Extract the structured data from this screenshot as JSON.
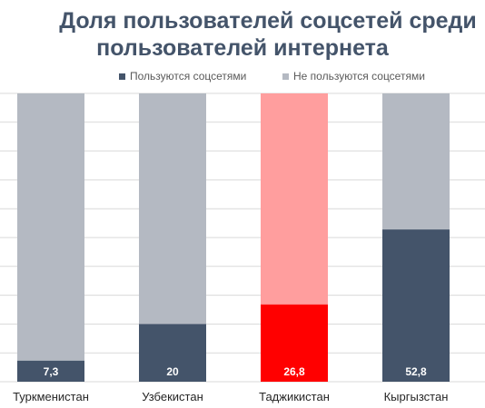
{
  "chart_data": {
    "type": "bar",
    "stacked": true,
    "percent": true,
    "title_line1": "Доля пользователей соцсетей среди",
    "title_line2": "пользователей интернета",
    "categories": [
      "Туркменистан",
      "Узбекистан",
      "Таджикистан",
      "Кыргызстан"
    ],
    "series": [
      {
        "name": "Пользуются соцсетями",
        "values": [
          7.3,
          20,
          26.8,
          52.8
        ],
        "labels": [
          "7,3",
          "20",
          "26,8",
          "52,8"
        ]
      },
      {
        "name": "Не пользуются соцсетями",
        "values": [
          92.7,
          80,
          73.2,
          47.2
        ]
      }
    ],
    "ylim": [
      0,
      100
    ],
    "grid": true,
    "legend": "top",
    "colors": {
      "used": "#44546a",
      "unused": "#b4b9c2",
      "highlight_used": "#ff0000",
      "highlight_unused": "#ff9e9e",
      "grid": "#d9d9d9",
      "title": "#44546a"
    },
    "highlight_index": 2
  }
}
